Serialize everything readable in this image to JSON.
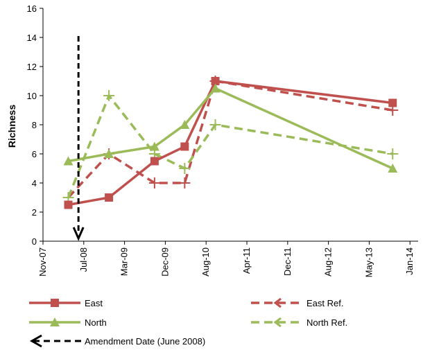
{
  "chart_data": {
    "type": "line",
    "ylabel": "Richness",
    "xlabel": "",
    "ylim": [
      0,
      16
    ],
    "yticks": [
      0,
      2,
      4,
      6,
      8,
      10,
      12,
      14,
      16
    ],
    "xlim": [
      "2007-11-01",
      "2014-01-01"
    ],
    "xticks": [
      "Nov-07",
      "Jul-08",
      "Mar-09",
      "Dec-09",
      "Aug-10",
      "Apr-11",
      "Dec-11",
      "Aug-12",
      "May-13",
      "Jan-14"
    ],
    "grid": false,
    "legend_position": "bottom",
    "series": [
      {
        "name": "East",
        "color": "#c0504d",
        "style": "solid",
        "marker": "square",
        "points": [
          {
            "x": "2008-04",
            "y": 2.5
          },
          {
            "x": "2008-12",
            "y": 3
          },
          {
            "x": "2009-09",
            "y": 5.5
          },
          {
            "x": "2010-03",
            "y": 6.5
          },
          {
            "x": "2010-09",
            "y": 11
          },
          {
            "x": "2013-08",
            "y": 9.5
          }
        ]
      },
      {
        "name": "East Ref.",
        "color": "#c0504d",
        "style": "dashed",
        "marker": "plus",
        "points": [
          {
            "x": "2008-04",
            "y": 3
          },
          {
            "x": "2008-12",
            "y": 6
          },
          {
            "x": "2009-09",
            "y": 4
          },
          {
            "x": "2010-03",
            "y": 4
          },
          {
            "x": "2010-09",
            "y": 11
          },
          {
            "x": "2013-08",
            "y": 9
          }
        ]
      },
      {
        "name": "North",
        "color": "#9bbb59",
        "style": "solid",
        "marker": "triangle",
        "points": [
          {
            "x": "2008-04",
            "y": 5.5
          },
          {
            "x": "2008-12",
            "y": 6
          },
          {
            "x": "2009-09",
            "y": 6.5
          },
          {
            "x": "2010-03",
            "y": 8
          },
          {
            "x": "2010-09",
            "y": 10.5
          },
          {
            "x": "2013-08",
            "y": 5
          }
        ]
      },
      {
        "name": "North Ref.",
        "color": "#9bbb59",
        "style": "dashed",
        "marker": "plus",
        "points": [
          {
            "x": "2008-04",
            "y": 3
          },
          {
            "x": "2008-12",
            "y": 10
          },
          {
            "x": "2009-09",
            "y": 6
          },
          {
            "x": "2010-03",
            "y": 5
          },
          {
            "x": "2010-09",
            "y": 8
          },
          {
            "x": "2013-08",
            "y": 6
          }
        ]
      }
    ],
    "annotation": {
      "label": "Amendment Date (June 2008)",
      "x": "2008-06",
      "color": "#000000",
      "style": "dashed-arrow"
    }
  }
}
